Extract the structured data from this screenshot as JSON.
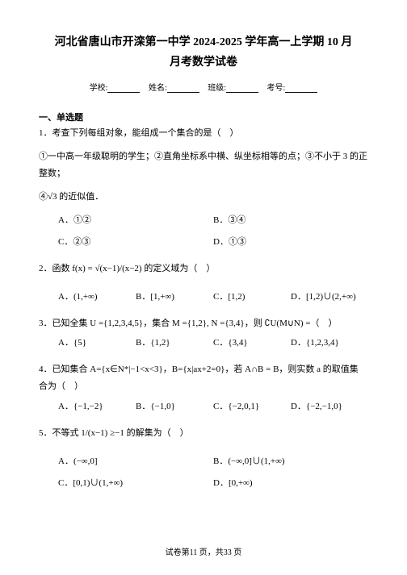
{
  "title_line1": "河北省唐山市开滦第一中学 2024-2025 学年高一上学期 10 月",
  "title_line2": "月考数学试卷",
  "meta": {
    "school_label": "学校:",
    "name_label": "姓名:",
    "class_label": "班级:",
    "id_label": "考号:"
  },
  "section1_header": "一、单选题",
  "q1": {
    "num": "1．",
    "stem": "考查下列每组对象，能组成一个集合的是（　）",
    "items": "①一中高一年级聪明的学生；②直角坐标系中横、纵坐标相等的点；③不小于 3 的正整数；",
    "items2": "④√3 的近似值．",
    "a": "A．①②",
    "b": "B．③④",
    "c": "C．②③",
    "d": "D．①③"
  },
  "q2": {
    "num": "2．",
    "stem": "函数 f(x) = √(x−1)/(x−2) 的定义域为（　）",
    "a": "A．(1,+∞)",
    "b": "B．[1,+∞)",
    "c": "C．[1,2)",
    "d": "D．[1,2)∪(2,+∞)"
  },
  "q3": {
    "num": "3．",
    "stem": "已知全集 U ={1,2,3,4,5}，集合 M ={1,2}, N ={3,4}，则 ∁U(M∪N) =（　）",
    "a": "A．{5}",
    "b": "B．{1,2}",
    "c": "C．{3,4}",
    "d": "D．{1,2,3,4}"
  },
  "q4": {
    "num": "4．",
    "stem": "已知集合 A={x∈N*|−1<x<3}，B={x|ax+2=0}，若 A∩B = B，则实数 a 的取值集",
    "stem2": "合为（　）",
    "a": "A．{−1,−2}",
    "b": "B．{−1,0}",
    "c": "C．{−2,0,1}",
    "d": "D．{−2,−1,0}"
  },
  "q5": {
    "num": "5．",
    "stem": "不等式 1/(x−1) ≥−1 的解集为（　）",
    "a": "A．(−∞,0]",
    "b": "B．(−∞,0]∪(1,+∞)",
    "c": "C．[0,1)∪(1,+∞)",
    "d": "D．[0,+∞)"
  },
  "footer": "试卷第11 页，共33 页",
  "colors": {
    "text": "#000000",
    "background": "#ffffff"
  }
}
